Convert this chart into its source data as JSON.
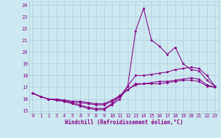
{
  "xlabel": "Windchill (Refroidissement éolien,°C)",
  "xlim": [
    -0.5,
    23.5
  ],
  "ylim": [
    14.8,
    24.3
  ],
  "yticks": [
    15,
    16,
    17,
    18,
    19,
    20,
    21,
    22,
    23,
    24
  ],
  "xticks": [
    0,
    1,
    2,
    3,
    4,
    5,
    6,
    7,
    8,
    9,
    10,
    11,
    12,
    13,
    14,
    15,
    16,
    17,
    18,
    19,
    20,
    21,
    22,
    23
  ],
  "bg_color": "#cce8f0",
  "grid_color": "#aaccdd",
  "line_color": "#880088",
  "series": [
    [
      16.5,
      16.2,
      16.0,
      15.9,
      15.8,
      15.6,
      15.4,
      15.2,
      15.1,
      15.1,
      15.5,
      16.0,
      17.1,
      21.8,
      23.7,
      21.0,
      20.5,
      19.8,
      20.4,
      19.0,
      18.5,
      18.4,
      17.6,
      17.1
    ],
    [
      16.5,
      16.2,
      16.0,
      15.9,
      15.8,
      15.7,
      15.5,
      15.3,
      15.2,
      15.2,
      15.6,
      16.2,
      17.1,
      18.0,
      18.0,
      18.1,
      18.2,
      18.3,
      18.5,
      18.6,
      18.7,
      18.6,
      18.0,
      17.1
    ],
    [
      16.5,
      16.2,
      16.0,
      16.0,
      15.9,
      15.8,
      15.7,
      15.6,
      15.5,
      15.5,
      15.8,
      16.2,
      16.8,
      17.3,
      17.3,
      17.4,
      17.5,
      17.5,
      17.6,
      17.7,
      17.8,
      17.7,
      17.2,
      17.0
    ],
    [
      16.5,
      16.2,
      16.0,
      16.0,
      15.9,
      15.8,
      15.8,
      15.7,
      15.6,
      15.6,
      15.9,
      16.3,
      16.8,
      17.2,
      17.3,
      17.3,
      17.3,
      17.4,
      17.5,
      17.6,
      17.6,
      17.5,
      17.1,
      17.0
    ]
  ]
}
